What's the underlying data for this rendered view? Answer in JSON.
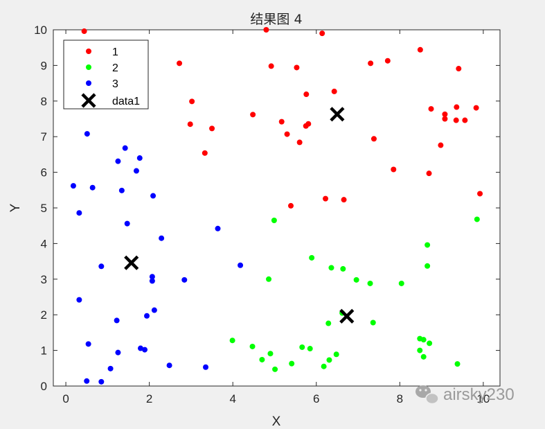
{
  "watermark": {
    "text": "airsky230",
    "icon": "wechat-icon"
  },
  "chart_data": {
    "type": "scatter",
    "title": "结果图 4",
    "xlabel": "X",
    "ylabel": "Y",
    "xlim": [
      -0.3,
      10.4
    ],
    "ylim": [
      0,
      10
    ],
    "xticks": [
      0,
      2,
      4,
      6,
      8,
      10
    ],
    "yticks": [
      0,
      1,
      2,
      3,
      4,
      5,
      6,
      7,
      8,
      9,
      10
    ],
    "box": true,
    "grid": false,
    "legend_position": "top-left",
    "series": [
      {
        "name": "1",
        "color": "#ff0000",
        "marker": "dot",
        "points": [
          [
            0.44,
            9.96
          ],
          [
            4.8,
            10.0
          ],
          [
            6.14,
            9.9
          ],
          [
            2.72,
            9.06
          ],
          [
            4.92,
            8.98
          ],
          [
            5.53,
            8.94
          ],
          [
            7.3,
            9.06
          ],
          [
            7.71,
            9.13
          ],
          [
            8.49,
            9.44
          ],
          [
            9.41,
            8.91
          ],
          [
            3.02,
            7.99
          ],
          [
            5.76,
            8.19
          ],
          [
            6.43,
            8.27
          ],
          [
            8.75,
            7.78
          ],
          [
            9.36,
            7.83
          ],
          [
            9.83,
            7.81
          ],
          [
            4.48,
            7.62
          ],
          [
            5.17,
            7.42
          ],
          [
            5.81,
            7.36
          ],
          [
            5.75,
            7.3
          ],
          [
            2.98,
            7.35
          ],
          [
            3.5,
            7.23
          ],
          [
            5.3,
            7.07
          ],
          [
            9.08,
            7.63
          ],
          [
            9.08,
            7.5
          ],
          [
            9.35,
            7.46
          ],
          [
            9.56,
            7.46
          ],
          [
            7.38,
            6.94
          ],
          [
            5.6,
            6.84
          ],
          [
            8.98,
            6.76
          ],
          [
            3.33,
            6.54
          ],
          [
            7.85,
            6.08
          ],
          [
            8.7,
            5.97
          ],
          [
            9.92,
            5.4
          ],
          [
            6.22,
            5.26
          ],
          [
            6.66,
            5.23
          ],
          [
            5.39,
            5.06
          ]
        ]
      },
      {
        "name": "2",
        "color": "#00ff00",
        "marker": "dot",
        "points": [
          [
            9.85,
            4.68
          ],
          [
            4.99,
            4.65
          ],
          [
            8.66,
            3.96
          ],
          [
            5.89,
            3.6
          ],
          [
            8.66,
            3.37
          ],
          [
            6.36,
            3.32
          ],
          [
            6.64,
            3.29
          ],
          [
            4.86,
            3.0
          ],
          [
            6.96,
            2.98
          ],
          [
            7.29,
            2.88
          ],
          [
            8.04,
            2.88
          ],
          [
            6.62,
            2.05
          ],
          [
            6.29,
            1.76
          ],
          [
            7.36,
            1.78
          ],
          [
            3.99,
            1.28
          ],
          [
            4.47,
            1.11
          ],
          [
            5.66,
            1.09
          ],
          [
            5.85,
            1.05
          ],
          [
            8.48,
            1.33
          ],
          [
            8.57,
            1.3
          ],
          [
            8.71,
            1.2
          ],
          [
            8.48,
            1.0
          ],
          [
            4.9,
            0.91
          ],
          [
            6.48,
            0.89
          ],
          [
            8.57,
            0.82
          ],
          [
            4.7,
            0.74
          ],
          [
            6.31,
            0.73
          ],
          [
            5.41,
            0.63
          ],
          [
            9.38,
            0.62
          ],
          [
            6.18,
            0.55
          ],
          [
            5.01,
            0.47
          ]
        ]
      },
      {
        "name": "3",
        "color": "#0000ff",
        "marker": "dot",
        "points": [
          [
            0.51,
            7.08
          ],
          [
            1.42,
            6.68
          ],
          [
            1.77,
            6.4
          ],
          [
            1.25,
            6.31
          ],
          [
            1.69,
            6.04
          ],
          [
            0.18,
            5.62
          ],
          [
            0.64,
            5.57
          ],
          [
            1.34,
            5.49
          ],
          [
            2.09,
            5.34
          ],
          [
            0.32,
            4.86
          ],
          [
            1.47,
            4.56
          ],
          [
            3.64,
            4.42
          ],
          [
            2.29,
            4.15
          ],
          [
            4.18,
            3.39
          ],
          [
            0.85,
            3.36
          ],
          [
            2.07,
            3.07
          ],
          [
            2.07,
            2.95
          ],
          [
            2.84,
            2.98
          ],
          [
            0.32,
            2.42
          ],
          [
            2.12,
            2.13
          ],
          [
            1.94,
            1.97
          ],
          [
            1.22,
            1.84
          ],
          [
            0.54,
            1.18
          ],
          [
            1.79,
            1.06
          ],
          [
            1.89,
            1.02
          ],
          [
            1.25,
            0.94
          ],
          [
            2.48,
            0.58
          ],
          [
            3.35,
            0.53
          ],
          [
            1.07,
            0.49
          ],
          [
            0.5,
            0.14
          ],
          [
            0.85,
            0.12
          ]
        ]
      },
      {
        "name": "data1",
        "color": "#000000",
        "marker": "x",
        "points": [
          [
            6.5,
            7.63
          ],
          [
            1.57,
            3.46
          ],
          [
            6.73,
            1.96
          ]
        ]
      }
    ]
  }
}
